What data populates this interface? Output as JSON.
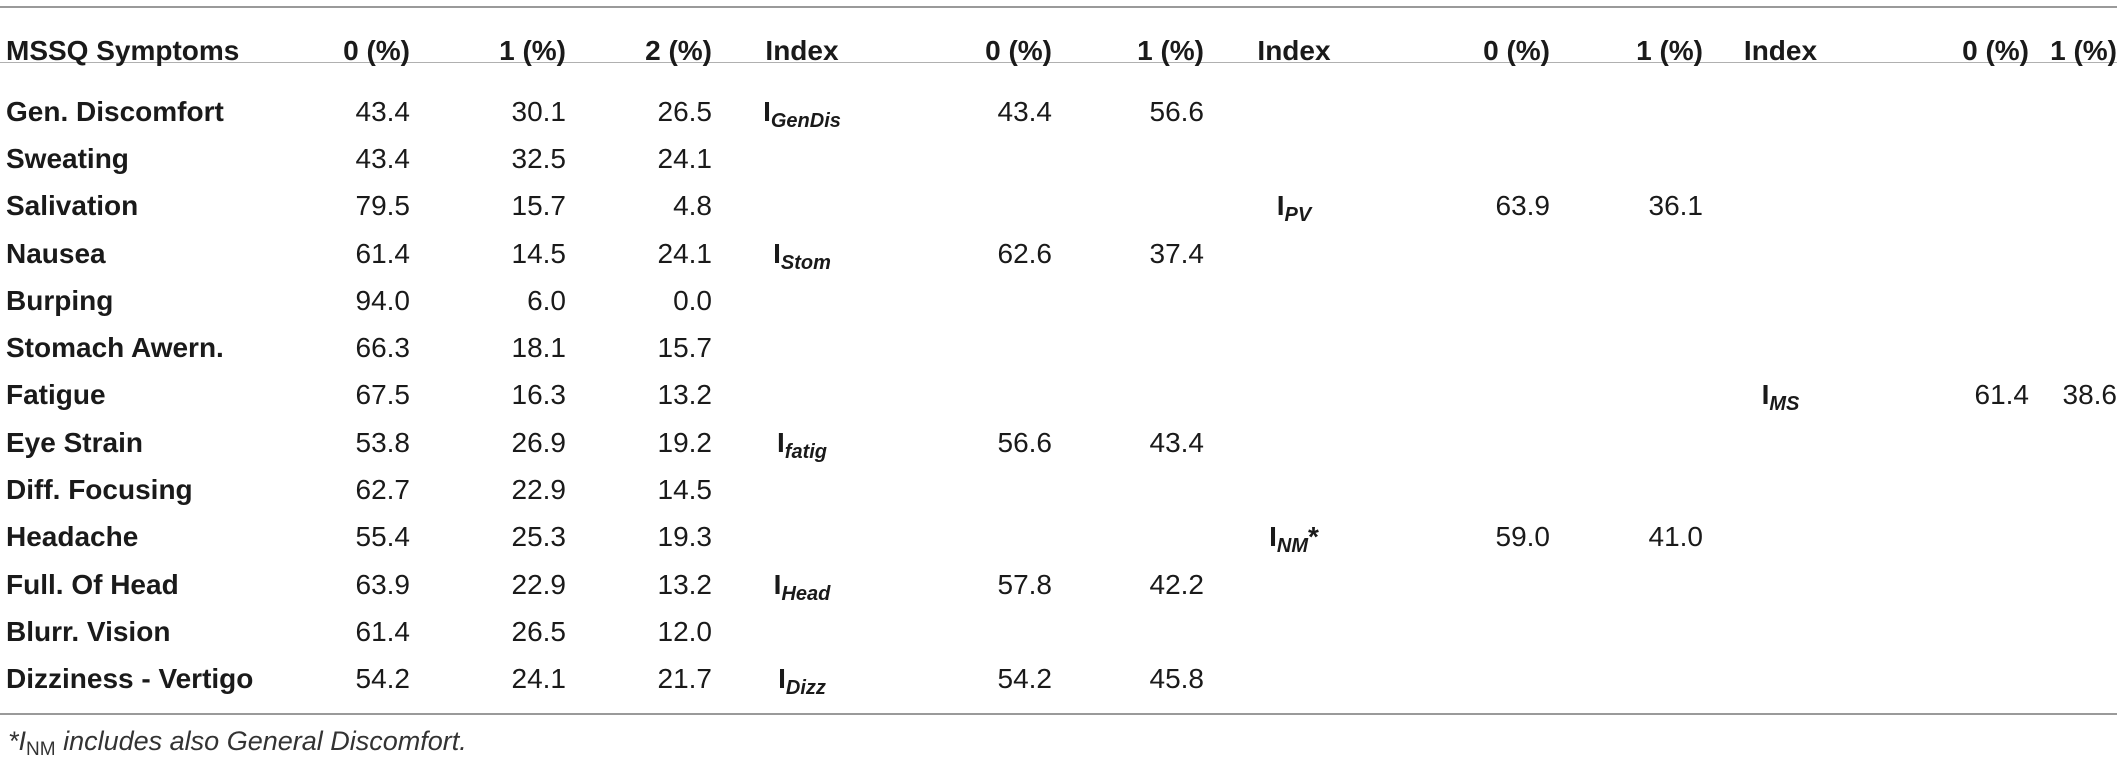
{
  "headers": {
    "symptom": "MSSQ Symptoms",
    "p0": "0 (%)",
    "p1": "1 (%)",
    "p2": "2 (%)",
    "index1": "Index",
    "i1_0": "0 (%)",
    "i1_1": "1 (%)",
    "index2": "Index",
    "i2_0": "0 (%)",
    "i2_1": "1 (%)",
    "index3": "Index",
    "i3_0": "0 (%)",
    "i3_1": "1 (%)"
  },
  "rows": [
    {
      "symptom": "Gen. Discomfort",
      "v0": "43.4",
      "v1": "30.1",
      "v2": "26.5"
    },
    {
      "symptom": "Sweating",
      "v0": "43.4",
      "v1": "32.5",
      "v2": "24.1"
    },
    {
      "symptom": "Salivation",
      "v0": "79.5",
      "v1": "15.7",
      "v2": "4.8"
    },
    {
      "symptom": "Nausea",
      "v0": "61.4",
      "v1": "14.5",
      "v2": "24.1"
    },
    {
      "symptom": "Burping",
      "v0": "94.0",
      "v1": "6.0",
      "v2": "0.0"
    },
    {
      "symptom": "Stomach Awern.",
      "v0": "66.3",
      "v1": "18.1",
      "v2": "15.7"
    },
    {
      "symptom": "Fatigue",
      "v0": "67.5",
      "v1": "16.3",
      "v2": "13.2"
    },
    {
      "symptom": "Eye Strain",
      "v0": "53.8",
      "v1": "26.9",
      "v2": "19.2"
    },
    {
      "symptom": "Diff. Focusing",
      "v0": "62.7",
      "v1": "22.9",
      "v2": "14.5"
    },
    {
      "symptom": "Headache",
      "v0": "55.4",
      "v1": "25.3",
      "v2": "19.3"
    },
    {
      "symptom": "Full. Of Head",
      "v0": "63.9",
      "v1": "22.9",
      "v2": "13.2"
    },
    {
      "symptom": "Blurr. Vision",
      "v0": "61.4",
      "v1": "26.5",
      "v2": "12.0"
    },
    {
      "symptom": "Dizziness - Vertigo",
      "v0": "54.2",
      "v1": "24.1",
      "v2": "21.7"
    }
  ],
  "index1": {
    "gendis": {
      "base": "I",
      "sub": "GenDis",
      "v0": "43.4",
      "v1": "56.6"
    },
    "stom": {
      "base": "I",
      "sub": "Stom",
      "v0": "62.6",
      "v1": "37.4"
    },
    "fatig": {
      "base": "I",
      "sub": "fatig",
      "v0": "56.6",
      "v1": "43.4"
    },
    "head": {
      "base": "I",
      "sub": "Head",
      "v0": "57.8",
      "v1": "42.2"
    },
    "dizz": {
      "base": "I",
      "sub": "Dizz",
      "v0": "54.2",
      "v1": "45.8"
    }
  },
  "index2": {
    "pv": {
      "base": "I",
      "sub": "PV",
      "v0": "63.9",
      "v1": "36.1"
    },
    "nm": {
      "base": "I",
      "sub": "NM",
      "star": "*",
      "v0": "59.0",
      "v1": "41.0"
    }
  },
  "index3": {
    "ms": {
      "base": "I",
      "sub": "MS",
      "v0": "61.4",
      "v1": "38.6"
    }
  },
  "footnote": {
    "star": "*",
    "base": "I",
    "sub": "NM",
    "text": " includes also General Discomfort."
  }
}
